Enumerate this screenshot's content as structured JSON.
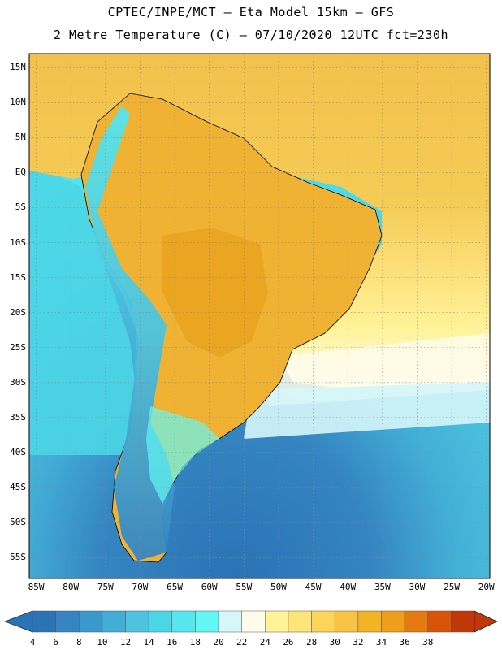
{
  "header": {
    "line1": "CPTEC/INPE/MCT –  Eta Model 15km – GFS",
    "line2": "2 Metre Temperature (C) – 07/10/2020 12UTC fct=230h"
  },
  "map": {
    "lat_labels": [
      {
        "lat": 15,
        "label": "15N"
      },
      {
        "lat": 10,
        "label": "10N"
      },
      {
        "lat": 5,
        "label": "5N"
      },
      {
        "lat": 0,
        "label": "EQ"
      },
      {
        "lat": -5,
        "label": "5S"
      },
      {
        "lat": -10,
        "label": "10S"
      },
      {
        "lat": -15,
        "label": "15S"
      },
      {
        "lat": -20,
        "label": "20S"
      },
      {
        "lat": -25,
        "label": "25S"
      },
      {
        "lat": -30,
        "label": "30S"
      },
      {
        "lat": -35,
        "label": "35S"
      },
      {
        "lat": -40,
        "label": "40S"
      },
      {
        "lat": -45,
        "label": "45S"
      },
      {
        "lat": -50,
        "label": "50S"
      },
      {
        "lat": -55,
        "label": "55S"
      }
    ],
    "lon_labels": [
      {
        "lon": -85,
        "label": "85W"
      },
      {
        "lon": -80,
        "label": "80W"
      },
      {
        "lon": -75,
        "label": "75W"
      },
      {
        "lon": -70,
        "label": "70W"
      },
      {
        "lon": -65,
        "label": "65W"
      },
      {
        "lon": -60,
        "label": "60W"
      },
      {
        "lon": -55,
        "label": "55W"
      },
      {
        "lon": -50,
        "label": "50W"
      },
      {
        "lon": -45,
        "label": "45W"
      },
      {
        "lon": -40,
        "label": "40W"
      },
      {
        "lon": -35,
        "label": "35W"
      },
      {
        "lon": -30,
        "label": "30W"
      },
      {
        "lon": -25,
        "label": "25W"
      },
      {
        "lon": -20,
        "label": "20W"
      }
    ],
    "lon_range": [
      -86,
      -19.5
    ],
    "lat_range": [
      -58,
      17
    ],
    "grid": true
  },
  "colorbar": {
    "labels": [
      "4",
      "6",
      "8",
      "10",
      "12",
      "14",
      "16",
      "18",
      "20",
      "22",
      "24",
      "26",
      "28",
      "30",
      "32",
      "34",
      "36",
      "38"
    ],
    "colors": [
      "#2a73b4",
      "#3585c2",
      "#3b98cc",
      "#42aed6",
      "#4dc3e0",
      "#4bd6e6",
      "#55e6ee",
      "#62f6f4",
      "#d6f6fa",
      "#fffbea",
      "#fff39a",
      "#fee57a",
      "#fcd55c",
      "#f7c543",
      "#f2b425",
      "#ee9e18",
      "#e77a0e",
      "#d95308",
      "#c03808"
    ],
    "left_arrow_color": "#2a73b4",
    "right_arrow_color": "#c03808"
  }
}
